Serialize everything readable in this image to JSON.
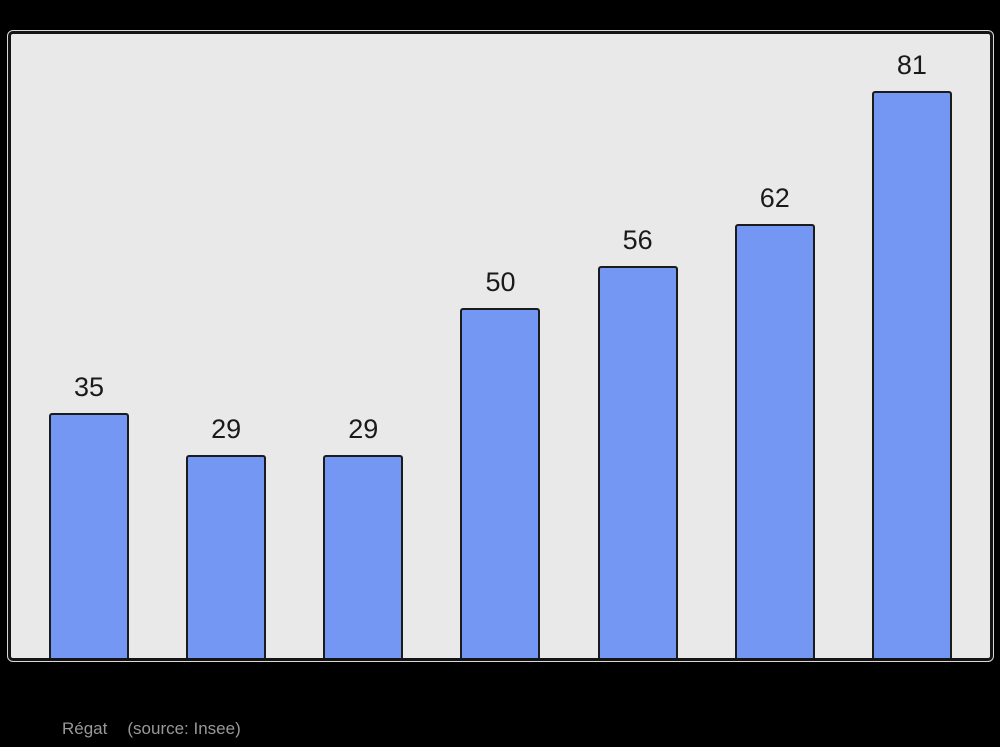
{
  "chart_data": {
    "type": "bar",
    "values": [
      35,
      29,
      29,
      50,
      56,
      62,
      81
    ],
    "data_labels": [
      "35",
      "29",
      "29",
      "50",
      "56",
      "62",
      "81"
    ],
    "title": "",
    "xlabel": "",
    "ylabel": "",
    "ylim": [
      0,
      89
    ],
    "grid": false,
    "legend": false,
    "axes_visible": false,
    "x_tick_labels_visible": false,
    "bar_count": 7
  },
  "caption": {
    "label": "Régat",
    "source": "(source: Insee)"
  },
  "colors": {
    "page_bg": "#000000",
    "panel_bg": "#e9e9e9",
    "panel_border": "#141414",
    "panel_outline": "#d8d8d8",
    "bar_fill": "#7397f3",
    "bar_border": "#1b1b1b",
    "value_label": "#1a1a1a",
    "caption_text": "#999999"
  }
}
